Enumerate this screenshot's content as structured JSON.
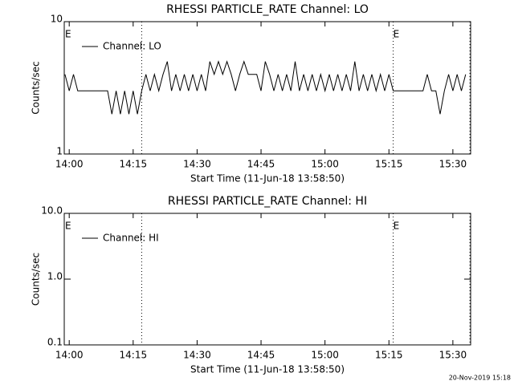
{
  "chart_data": [
    {
      "type": "line",
      "title": "RHESSI PARTICLE_RATE Channel: LO",
      "ylabel": "Counts/sec",
      "xlabel": "Start Time (11-Jun-18 13:58:50)",
      "log_y": true,
      "xlim": [
        "13:58:50",
        "15:34:10"
      ],
      "ylim": [
        1,
        10
      ],
      "yticks": [
        1,
        10
      ],
      "xticks": [
        "14:00",
        "14:15",
        "14:30",
        "14:45",
        "15:00",
        "15:15",
        "15:30"
      ],
      "event_lines": [
        "14:17",
        "15:16",
        "15:34"
      ],
      "annotations": [
        {
          "text": "E",
          "x": "13:59"
        },
        {
          "text": "E",
          "x": "15:16"
        }
      ],
      "legend": "upper left",
      "series": [
        {
          "name": "Channel: LO",
          "color": "#000000",
          "x": [
            "13:59",
            "14:00",
            "14:01",
            "14:02",
            "14:03",
            "14:04",
            "14:05",
            "14:06",
            "14:07",
            "14:08",
            "14:09",
            "14:10",
            "14:11",
            "14:12",
            "14:13",
            "14:14",
            "14:15",
            "14:16",
            "14:17",
            "14:18",
            "14:19",
            "14:20",
            "14:21",
            "14:22",
            "14:23",
            "14:24",
            "14:25",
            "14:26",
            "14:27",
            "14:28",
            "14:29",
            "14:30",
            "14:31",
            "14:32",
            "14:33",
            "14:34",
            "14:35",
            "14:36",
            "14:37",
            "14:38",
            "14:39",
            "14:40",
            "14:41",
            "14:42",
            "14:43",
            "14:44",
            "14:45",
            "14:46",
            "14:47",
            "14:48",
            "14:49",
            "14:50",
            "14:51",
            "14:52",
            "14:53",
            "14:54",
            "14:55",
            "14:56",
            "14:57",
            "14:58",
            "14:59",
            "15:00",
            "15:01",
            "15:02",
            "15:03",
            "15:04",
            "15:05",
            "15:06",
            "15:07",
            "15:08",
            "15:09",
            "15:10",
            "15:11",
            "15:12",
            "15:13",
            "15:14",
            "15:15",
            "15:16",
            "15:17",
            "15:18",
            "15:19",
            "15:20",
            "15:21",
            "15:22",
            "15:23",
            "15:24",
            "15:25",
            "15:26",
            "15:27",
            "15:28",
            "15:29",
            "15:30",
            "15:31",
            "15:32",
            "15:33"
          ],
          "values": [
            4,
            3,
            4,
            3,
            3,
            3,
            3,
            3,
            3,
            3,
            3,
            2,
            3,
            2,
            3,
            2,
            3,
            2,
            3,
            4,
            3,
            4,
            3,
            4,
            5,
            3,
            4,
            3,
            4,
            3,
            4,
            3,
            4,
            3,
            5,
            4,
            5,
            4,
            5,
            4,
            3,
            4,
            5,
            4,
            4,
            4,
            3,
            5,
            4,
            3,
            4,
            3,
            4,
            3,
            5,
            3,
            4,
            3,
            4,
            3,
            4,
            3,
            4,
            3,
            4,
            3,
            4,
            3,
            5,
            3,
            4,
            3,
            4,
            3,
            4,
            3,
            4,
            3,
            3,
            3,
            3,
            3,
            3,
            3,
            3,
            4,
            3,
            3,
            2,
            3,
            4,
            3,
            4,
            3,
            4
          ]
        }
      ]
    },
    {
      "type": "line",
      "title": "RHESSI PARTICLE_RATE Channel: HI",
      "ylabel": "Counts/sec",
      "xlabel": "Start Time (11-Jun-18 13:58:50)",
      "log_y": true,
      "xlim": [
        "13:58:50",
        "15:34:10"
      ],
      "ylim": [
        0.1,
        10
      ],
      "yticks": [
        0.1,
        {
          "value": 1,
          "label": "1.0"
        },
        {
          "value": 10,
          "label": "10.0"
        }
      ],
      "xticks": [
        "14:00",
        "14:15",
        "14:30",
        "14:45",
        "15:00",
        "15:15",
        "15:30"
      ],
      "event_lines": [
        "14:17",
        "15:16",
        "15:34"
      ],
      "annotations": [
        {
          "text": "E",
          "x": "13:59"
        },
        {
          "text": "E",
          "x": "15:16"
        }
      ],
      "legend": "upper left",
      "series": [
        {
          "name": "Channel: HI",
          "color": "#000000",
          "x": [],
          "values": []
        }
      ]
    }
  ],
  "footer": "20-Nov-2019 15:18"
}
